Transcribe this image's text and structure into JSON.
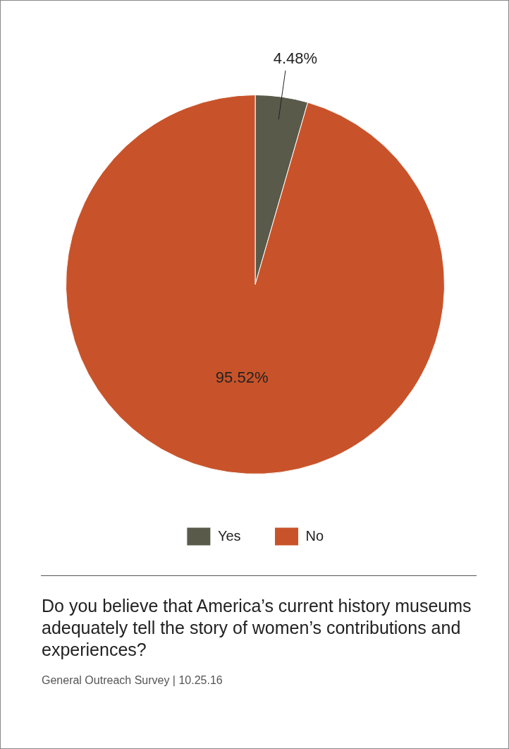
{
  "chart_data": {
    "type": "pie",
    "title": "Do you believe that America’s current history museums adequately tell the story of women’s contributions and experiences?",
    "categories": [
      "Yes",
      "No"
    ],
    "values": [
      4.48,
      95.52
    ],
    "colors": [
      "#5a5a4b",
      "#c8532a"
    ],
    "value_labels": [
      "4.48%",
      "95.52%"
    ],
    "legend": "bottom",
    "annotations": [
      "General Outreach Survey | 10.25.16"
    ]
  }
}
